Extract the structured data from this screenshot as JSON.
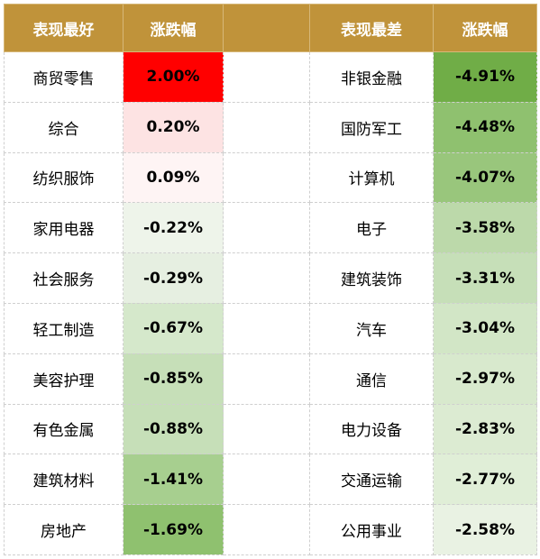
{
  "header": {
    "best_label": "表现最好",
    "change_label": "涨跌幅",
    "worst_label": "表现最差",
    "change_label_2": "涨跌幅"
  },
  "colors": {
    "header_bg": "#c0933a",
    "up_strong": "#ff0000",
    "up_light": "#fde3e3",
    "up_faint": "#fef4f4",
    "down_scale": [
      "#eef4ea",
      "#e6efe1",
      "#d5e8cb",
      "#c6dfb8",
      "#a7cf8f",
      "#8fc16f",
      "#70ad47"
    ]
  },
  "rows": [
    {
      "best_name": "商贸零售",
      "best_value": "2.00%",
      "worst_name": "非银金融",
      "worst_value": "-4.91%"
    },
    {
      "best_name": "综合",
      "best_value": "0.20%",
      "worst_name": "国防军工",
      "worst_value": "-4.48%"
    },
    {
      "best_name": "纺织服饰",
      "best_value": "0.09%",
      "worst_name": "计算机",
      "worst_value": "-4.07%"
    },
    {
      "best_name": "家用电器",
      "best_value": "-0.22%",
      "worst_name": "电子",
      "worst_value": "-3.58%"
    },
    {
      "best_name": "社会服务",
      "best_value": "-0.29%",
      "worst_name": "建筑装饰",
      "worst_value": "-3.31%"
    },
    {
      "best_name": "轻工制造",
      "best_value": "-0.67%",
      "worst_name": "汽车",
      "worst_value": "-3.04%"
    },
    {
      "best_name": "美容护理",
      "best_value": "-0.85%",
      "worst_name": "通信",
      "worst_value": "-2.97%"
    },
    {
      "best_name": "有色金属",
      "best_value": "-0.88%",
      "worst_name": "电力设备",
      "worst_value": "-2.83%"
    },
    {
      "best_name": "建筑材料",
      "best_value": "-1.41%",
      "worst_name": "交通运输",
      "worst_value": "-2.77%"
    },
    {
      "best_name": "房地产",
      "best_value": "-1.69%",
      "worst_name": "公用事业",
      "worst_value": "-2.58%"
    }
  ]
}
